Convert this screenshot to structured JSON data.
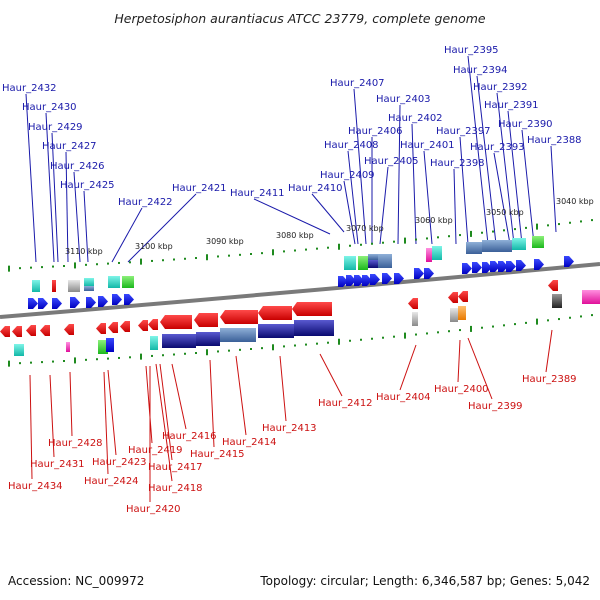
{
  "title": "Herpetosiphon aurantiacus ATCC 23779, complete genome",
  "accession": "Accession: NC_009972",
  "topology": "Topology: circular; Length: 6,346,587 bp; Genes: 5,042",
  "positions": [
    "3110 kbp",
    "3100 kbp",
    "3090 kbp",
    "3080 kbp",
    "3070 kbp",
    "3060 kbp",
    "3050 kbp",
    "3040 kbp"
  ],
  "top_genes": [
    "Haur_2432",
    "Haur_2430",
    "Haur_2429",
    "Haur_2427",
    "Haur_2426",
    "Haur_2425",
    "Haur_2422",
    "Haur_2421",
    "Haur_2411",
    "Haur_2410",
    "Haur_2409",
    "Haur_2408",
    "Haur_2407",
    "Haur_2406",
    "Haur_2405",
    "Haur_2403",
    "Haur_2402",
    "Haur_2401",
    "Haur_2398",
    "Haur_2397",
    "Haur_2395",
    "Haur_2394",
    "Haur_2393",
    "Haur_2392",
    "Haur_2391",
    "Haur_2390",
    "Haur_2388"
  ],
  "bottom_genes": [
    "Haur_2434",
    "Haur_2431",
    "Haur_2428",
    "Haur_2424",
    "Haur_2423",
    "Haur_2420",
    "Haur_2419",
    "Haur_2418",
    "Haur_2417",
    "Haur_2416",
    "Haur_2415",
    "Haur_2414",
    "Haur_2413",
    "Haur_2412",
    "Haur_2404",
    "Haur_2400",
    "Haur_2399",
    "Haur_2389"
  ],
  "colors": {
    "forward": "#0a14e6",
    "reverse": "#e61414",
    "top_label": "#1a1aaa",
    "bottom_label": "#cc1111",
    "backbone": "#7a7a7a",
    "tick": "#1e8a1e"
  }
}
